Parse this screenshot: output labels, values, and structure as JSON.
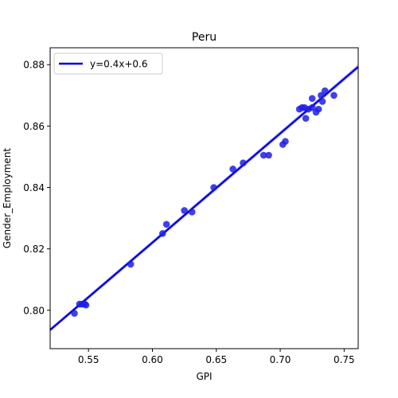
{
  "chart_data": {
    "type": "scatter",
    "title": "Peru",
    "xlabel": "GPI",
    "ylabel": "Gender_Employment",
    "xlim": [
      0.52,
      0.761
    ],
    "ylim": [
      0.7875,
      0.8855
    ],
    "x_ticks": [
      0.55,
      0.6,
      0.65,
      0.7,
      0.75
    ],
    "x_tick_labels": [
      "0.55",
      "0.60",
      "0.65",
      "0.70",
      "0.75"
    ],
    "y_ticks": [
      0.8,
      0.82,
      0.84,
      0.86,
      0.88
    ],
    "y_tick_labels": [
      "0.80",
      "0.82",
      "0.84",
      "0.86",
      "0.88"
    ],
    "grid": false,
    "legend": {
      "placement": "top-left",
      "entries": [
        "y=0.4x+0.6"
      ]
    },
    "colors": {
      "points": "#1f1fe6",
      "line": "#0000e0",
      "band": "#b0b0ec"
    },
    "series": [
      {
        "kind": "scatter",
        "points": [
          [
            0.539,
            0.799
          ],
          [
            0.543,
            0.802
          ],
          [
            0.545,
            0.802
          ],
          [
            0.547,
            0.802
          ],
          [
            0.548,
            0.8017
          ],
          [
            0.583,
            0.815
          ],
          [
            0.608,
            0.825
          ],
          [
            0.611,
            0.828
          ],
          [
            0.625,
            0.8325
          ],
          [
            0.631,
            0.832
          ],
          [
            0.648,
            0.84
          ],
          [
            0.663,
            0.846
          ],
          [
            0.671,
            0.848
          ],
          [
            0.687,
            0.8505
          ],
          [
            0.691,
            0.8505
          ],
          [
            0.702,
            0.854
          ],
          [
            0.704,
            0.855
          ],
          [
            0.715,
            0.8655
          ],
          [
            0.717,
            0.866
          ],
          [
            0.719,
            0.866
          ],
          [
            0.72,
            0.8625
          ],
          [
            0.722,
            0.8655
          ],
          [
            0.725,
            0.866
          ],
          [
            0.725,
            0.869
          ],
          [
            0.728,
            0.8645
          ],
          [
            0.73,
            0.8655
          ],
          [
            0.732,
            0.87
          ],
          [
            0.733,
            0.868
          ],
          [
            0.735,
            0.8715
          ],
          [
            0.742,
            0.87
          ]
        ]
      },
      {
        "kind": "line",
        "name": "y=0.4x+0.6",
        "x": [
          0.52,
          0.761
        ],
        "y": [
          0.7936,
          0.8793
        ]
      }
    ]
  }
}
